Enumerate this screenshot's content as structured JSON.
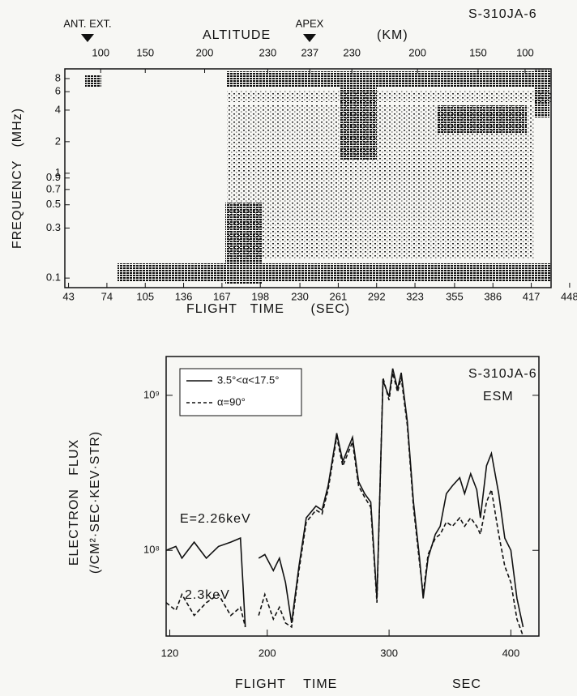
{
  "chart_data": [
    {
      "type": "spectrogram",
      "title": "S-310JA-6",
      "top_axis_label": "ALTITUDE",
      "top_axis_unit": "(KM)",
      "altitude_ticks": [
        {
          "value": 69,
          "label": "100"
        },
        {
          "value": 105,
          "label": "150"
        },
        {
          "value": 153,
          "label": "200"
        },
        {
          "value": 204,
          "label": "230"
        },
        {
          "value": 238,
          "label": "237"
        },
        {
          "value": 272,
          "label": "230"
        },
        {
          "value": 325,
          "label": "200"
        },
        {
          "value": 374,
          "label": "150"
        },
        {
          "value": 412,
          "label": "100"
        }
      ],
      "annotations": [
        "ANT. EXT.",
        "APEX"
      ],
      "xlabel": "FLIGHT   TIME      (SEC)",
      "ylabel": "FREQUENCY   (MHz)",
      "xlim": [
        40,
        433
      ],
      "xticks": [
        43,
        74,
        105,
        136,
        167,
        198,
        230,
        261,
        292,
        323,
        355,
        386,
        417,
        448
      ],
      "ylim": [
        0.081,
        9.9
      ],
      "yticks": [
        0.1,
        0.3,
        0.5,
        0.7,
        0.9,
        1,
        2,
        4,
        6,
        8
      ],
      "log_y": true
    },
    {
      "type": "line",
      "title": "S-310JA-6",
      "subtitle": "ESM",
      "xlabel": "FLIGHT    TIME",
      "xunit": "SEC",
      "ylabel": "ELECTRON   FLUX",
      "yunit": "(/CM²·SEC·KEV·STR)",
      "annotations": [
        "E=2.26keV",
        "2.3keV"
      ],
      "legend": "upper left",
      "xlim": [
        117,
        423
      ],
      "xticks": [
        120,
        200,
        300,
        400
      ],
      "ylim": [
        28000000.0,
        1780000000.0
      ],
      "yticks": [
        {
          "value": 100000000.0,
          "label": "10⁸"
        },
        {
          "value": 1000000000.0,
          "label": "10⁹"
        }
      ],
      "log_y": true,
      "x": [
        117,
        125,
        130,
        140,
        150,
        160,
        170,
        178,
        182,
        186,
        193,
        198,
        205,
        210,
        215,
        220,
        226,
        232,
        240,
        245,
        250,
        257,
        262,
        270,
        275,
        280,
        285,
        290,
        295,
        300,
        303,
        307,
        310,
        315,
        320,
        325,
        328,
        332,
        338,
        342,
        347,
        352,
        358,
        362,
        367,
        372,
        375,
        380,
        384,
        390,
        395,
        400,
        405,
        410
      ],
      "series": [
        {
          "name": "3.5°<α<17.5°",
          "color": "#111111",
          "dash": false,
          "values": [
            100000000.0,
            106000000.0,
            89000000.0,
            113000000.0,
            89000000.0,
            106000000.0,
            113000000.0,
            120000000.0,
            32000000.0,
            null,
            89000000.0,
            94000000.0,
            74000000.0,
            89000000.0,
            62000000.0,
            34000000.0,
            79000000.0,
            162000000.0,
            193000000.0,
            182000000.0,
            261000000.0,
            570000000.0,
            374000000.0,
            536000000.0,
            277000000.0,
            232000000.0,
            205000000.0,
            49000000.0,
            1240000000.0,
            980000000.0,
            1490000000.0,
            1100000000.0,
            1400000000.0,
            680000000.0,
            205000000.0,
            89000000.0,
            49000000.0,
            89000000.0,
            127000000.0,
            143000000.0,
            232000000.0,
            261000000.0,
            294000000.0,
            232000000.0,
            312000000.0,
            246000000.0,
            162000000.0,
            352000000.0,
            422000000.0,
            232000000.0,
            120000000.0,
            100000000.0,
            49000000.0,
            32000000.0
          ]
        },
        {
          "name": "α=90°",
          "color": "#111111",
          "dash": true,
          "values": [
            46000000.0,
            41000000.0,
            52000000.0,
            38000000.0,
            46000000.0,
            52000000.0,
            38000000.0,
            43000000.0,
            32000000.0,
            null,
            38000000.0,
            52000000.0,
            36000000.0,
            43000000.0,
            34000000.0,
            32000000.0,
            74000000.0,
            152000000.0,
            182000000.0,
            172000000.0,
            246000000.0,
            540000000.0,
            350000000.0,
            500000000.0,
            260000000.0,
            220000000.0,
            190000000.0,
            46000000.0,
            1300000000.0,
            930000000.0,
            1400000000.0,
            1050000000.0,
            1300000000.0,
            640000000.0,
            190000000.0,
            83000000.0,
            52000000.0,
            94000000.0,
            120000000.0,
            127000000.0,
            152000000.0,
            143000000.0,
            162000000.0,
            143000000.0,
            162000000.0,
            143000000.0,
            127000000.0,
            205000000.0,
            246000000.0,
            127000000.0,
            79000000.0,
            62000000.0,
            36000000.0,
            28000000.0
          ]
        }
      ]
    }
  ]
}
